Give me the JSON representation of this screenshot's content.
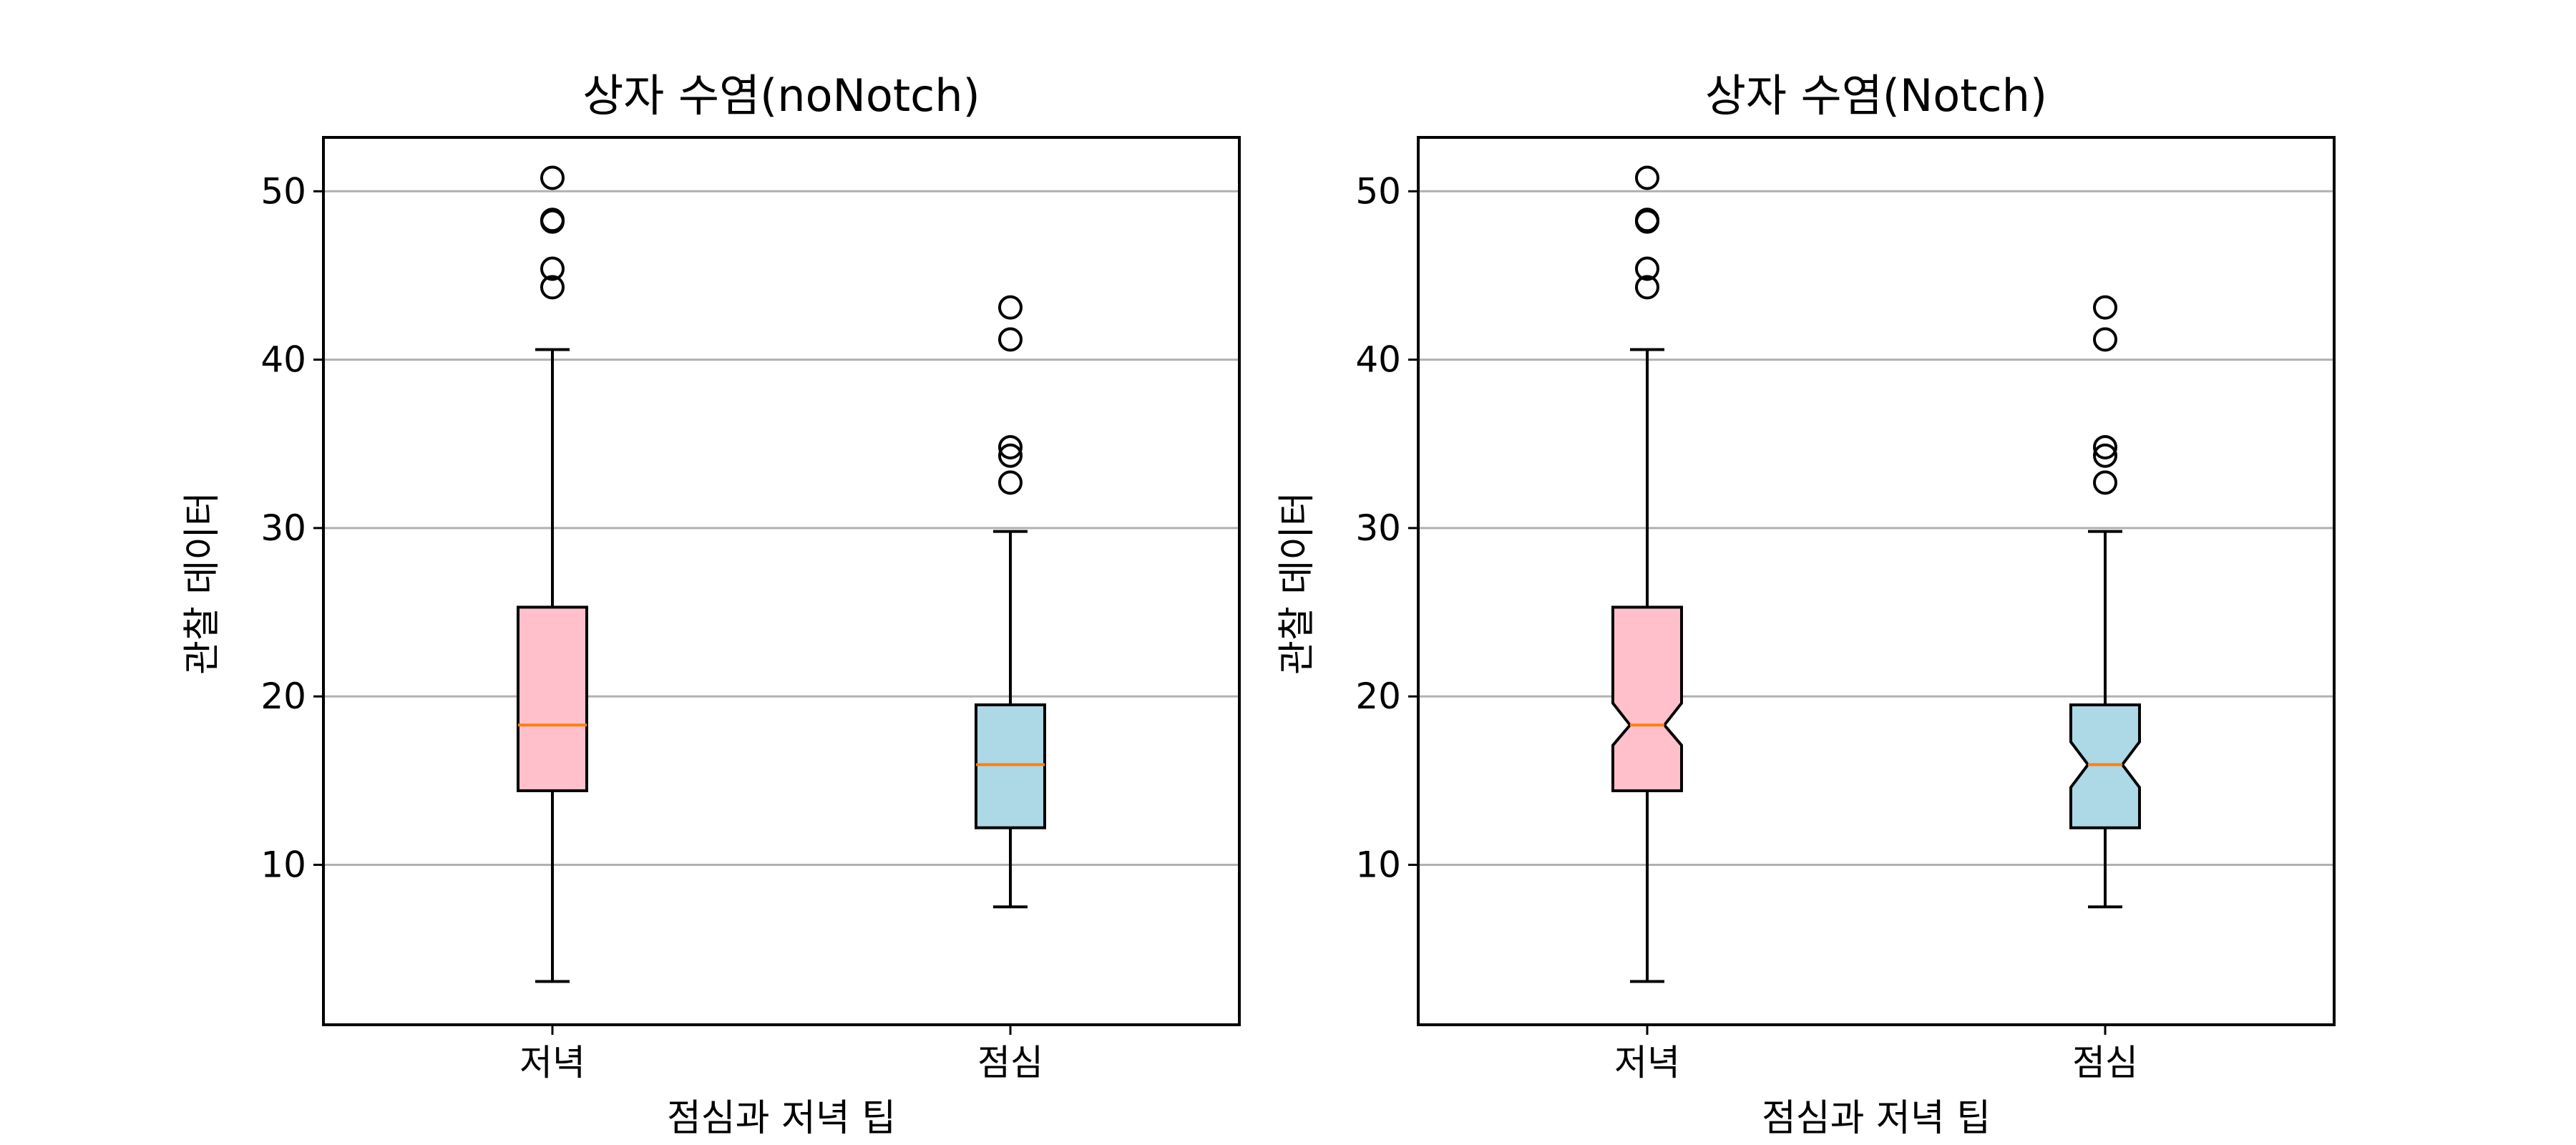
{
  "figure": {
    "background": "#ffffff",
    "box_color": "#000000",
    "median_color": "#ff7f0e",
    "grid_color": "#b0b0b0"
  },
  "chart_data": [
    {
      "type": "boxplot",
      "title": "상자 수염(noNotch)",
      "xlabel": "점심과 저녁 팁",
      "ylabel": "관찰 데이터",
      "ylim": [
        0.5,
        53.2
      ],
      "yticks": [
        10,
        20,
        30,
        40,
        50
      ],
      "grid": {
        "y": true,
        "x": false
      },
      "notch": false,
      "categories": [
        "저녁",
        "점심"
      ],
      "boxes": [
        {
          "name": "저녁",
          "color": "#ffc0cb",
          "whislo": 3.07,
          "q1": 14.4,
          "median": 18.3,
          "q3": 25.3,
          "whishi": 40.6,
          "fliers": [
            44.3,
            45.4,
            48.2,
            48.3,
            50.8
          ]
        },
        {
          "name": "점심",
          "color": "#add8e6",
          "whislo": 7.5,
          "q1": 12.2,
          "median": 15.95,
          "q3": 19.5,
          "whishi": 29.8,
          "fliers": [
            32.7,
            34.3,
            34.8,
            41.2,
            43.1
          ]
        }
      ]
    },
    {
      "type": "boxplot",
      "title": "상자 수염(Notch)",
      "xlabel": "점심과 저녁 팁",
      "ylabel": "관찰 데이터",
      "ylim": [
        0.5,
        53.2
      ],
      "yticks": [
        10,
        20,
        30,
        40,
        50
      ],
      "grid": {
        "y": true,
        "x": false
      },
      "notch": true,
      "categories": [
        "저녁",
        "점심"
      ],
      "boxes": [
        {
          "name": "저녁",
          "color": "#ffc0cb",
          "whislo": 3.07,
          "q1": 14.4,
          "median": 18.3,
          "q3": 25.3,
          "whishi": 40.6,
          "notch_lo": 17.1,
          "notch_hi": 19.6,
          "fliers": [
            44.3,
            45.4,
            48.2,
            48.3,
            50.8
          ]
        },
        {
          "name": "점심",
          "color": "#add8e6",
          "whislo": 7.5,
          "q1": 12.2,
          "median": 15.95,
          "q3": 19.5,
          "whishi": 29.8,
          "notch_lo": 14.6,
          "notch_hi": 17.3,
          "fliers": [
            32.7,
            34.3,
            34.8,
            41.2,
            43.1
          ]
        }
      ]
    }
  ]
}
